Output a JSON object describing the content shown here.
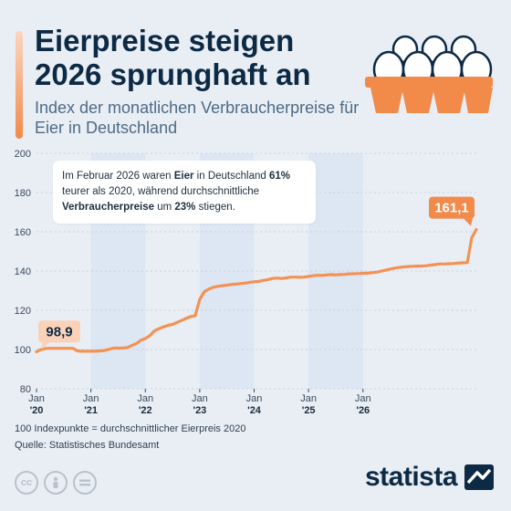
{
  "header": {
    "title": "Eierpreise steigen 2026 sprunghaft an",
    "subtitle": "Index der monatlichen Verbraucherpreise für Eier in Deutschland"
  },
  "callout": {
    "text_1": "Im Februar 2026 waren ",
    "bold_1": "Eier",
    "text_2": " in Deutschland ",
    "bold_2": "61%",
    "text_3": " teurer als 2020, während durchschnittliche ",
    "bold_3": "Verbraucherpreise",
    "text_4": " um ",
    "bold_4": "23%",
    "text_5": " stiegen."
  },
  "footer": {
    "note": "100 Indexpunkte = durchschnittlicher Eierpreis 2020",
    "source": "Quelle: Statistisches Bundesamt",
    "brand": "statista"
  },
  "colors": {
    "line": "#f39253",
    "label_start_bg": "#fbd2b8",
    "label_end_bg": "#f28a4a",
    "band": "#dde6f3",
    "plot_bg": "#e9eef5",
    "title": "#0d2a45",
    "subtitle": "#4d6a86"
  },
  "icons": [
    "egg-carton-icon",
    "cc-icon",
    "person-icon",
    "equals-icon",
    "statista-logo-icon"
  ],
  "chart_data": {
    "type": "line",
    "ylim": [
      80,
      200
    ],
    "yticks": [
      80,
      100,
      120,
      140,
      160,
      180,
      200
    ],
    "xticks": [
      {
        "line1": "Jan",
        "line2": "'20"
      },
      {
        "line1": "Jan",
        "line2": "'21"
      },
      {
        "line1": "Jan",
        "line2": "'22"
      },
      {
        "line1": "Jan",
        "line2": "'23"
      },
      {
        "line1": "Jan",
        "line2": "'24"
      },
      {
        "line1": "Jan",
        "line2": "'25"
      },
      {
        "line1": "Jan",
        "line2": "'26"
      }
    ],
    "series": [
      {
        "values": [
          98.9,
          100,
          100.5,
          100.6,
          100.6,
          100.6,
          100.6,
          100.6,
          100.6,
          99.3,
          99.1,
          99.1,
          99.1,
          99.1,
          99.3,
          99.5,
          100.1,
          100.7,
          100.7,
          100.7,
          101,
          102,
          103,
          104.7,
          105.6,
          107,
          109.5,
          110.6,
          111.5,
          112.3,
          112.8,
          113.8,
          114.8,
          115.8,
          116.8,
          117.2,
          125.6,
          129.4,
          130.8,
          131.7,
          132.2,
          132.5,
          132.8,
          133.1,
          133.3,
          133.6,
          133.8,
          134.2,
          134.5,
          134.7,
          135.2,
          135.6,
          136.2,
          136.4,
          136.2,
          136.4,
          136.9,
          136.9,
          136.8,
          136.9,
          137.2,
          137.6,
          137.8,
          137.7,
          138,
          138.2,
          138,
          138.2,
          138.3,
          138.5,
          138.6,
          138.7,
          138.9,
          138.9,
          139.1,
          139.4,
          139.9,
          140.4,
          141,
          141.5,
          141.8,
          142.1,
          142.3,
          142.4,
          142.5,
          142.5,
          142.7,
          143,
          143.3,
          143.6,
          143.6,
          143.7,
          143.8,
          144,
          144.2,
          144.3,
          157,
          161.1
        ]
      }
    ],
    "value_labels": {
      "start": "98,9",
      "end": "161,1"
    }
  }
}
